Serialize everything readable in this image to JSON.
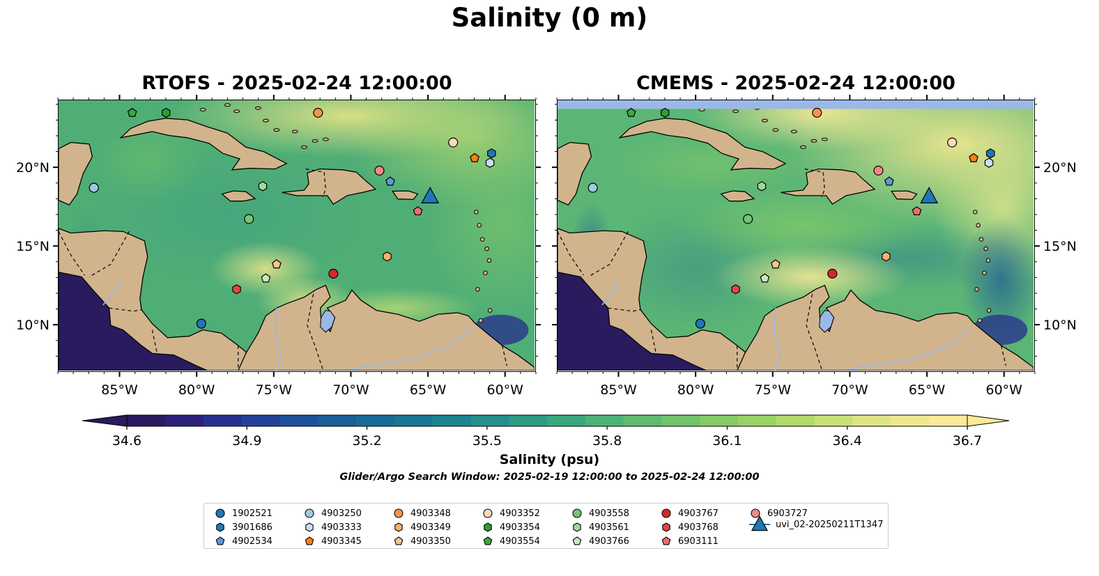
{
  "title": "Salinity (0 m)",
  "panels": [
    {
      "name": "rtofs",
      "title": "RTOFS - 2025-02-24 12:00:00",
      "has_missing_band": false
    },
    {
      "name": "cmems",
      "title": "CMEMS - 2025-02-24 12:00:00",
      "has_missing_band": true
    }
  ],
  "map_extent": {
    "lon_min": -89.0,
    "lon_max": -58.0,
    "lat_min": 7.0,
    "lat_max": 24.3
  },
  "axes": {
    "lon_ticks": [
      {
        "value": -85,
        "label": "85°W"
      },
      {
        "value": -80,
        "label": "80°W"
      },
      {
        "value": -75,
        "label": "75°W"
      },
      {
        "value": -70,
        "label": "70°W"
      },
      {
        "value": -65,
        "label": "65°W"
      },
      {
        "value": -60,
        "label": "60°W"
      }
    ],
    "lat_ticks": [
      {
        "value": 20,
        "label": "20°N"
      },
      {
        "value": 15,
        "label": "15°N"
      },
      {
        "value": 10,
        "label": "10°N"
      }
    ]
  },
  "colorbar": {
    "label": "Salinity (psu)",
    "min": 34.6,
    "max": 36.7,
    "tick_labels": [
      "34.6",
      "34.9",
      "35.2",
      "35.5",
      "35.8",
      "36.1",
      "36.4",
      "36.7"
    ],
    "colors": [
      "#2a1a5e",
      "#2b207a",
      "#28318f",
      "#234198",
      "#1f509a",
      "#1b5e99",
      "#196b97",
      "#1a7794",
      "#1d8391",
      "#23908c",
      "#2c9c86",
      "#3aa77f",
      "#4cb278",
      "#60bb70",
      "#73c46a",
      "#86cb66",
      "#9bd266",
      "#b2d96c",
      "#c9e078",
      "#dfe586",
      "#efe690",
      "#fbeb98"
    ],
    "extend": "both"
  },
  "search_window": "Glider/Argo Search Window: 2025-02-19 12:00:00 to 2025-02-24 12:00:00",
  "colors": {
    "land": "#d1b48c",
    "deep_fresh": "#2a1a5e",
    "missing_band": "#9bb8e6",
    "lake": "#9bb8e6"
  },
  "legend": {
    "items": [
      {
        "id": "1902521",
        "label": "1902521",
        "marker": "circle",
        "color": "#1f77b4"
      },
      {
        "id": "3901686",
        "label": "3901686",
        "marker": "hexagon",
        "color": "#1f77b4"
      },
      {
        "id": "4902534",
        "label": "4902534",
        "marker": "pentagon",
        "color": "#5b9bd5"
      },
      {
        "id": "4903250",
        "label": "4903250",
        "marker": "circle",
        "color": "#9ecae1"
      },
      {
        "id": "4903333",
        "label": "4903333",
        "marker": "hexagon",
        "color": "#c6e0f5"
      },
      {
        "id": "4903345",
        "label": "4903345",
        "marker": "pentagon",
        "color": "#ff7f0e"
      },
      {
        "id": "4903348",
        "label": "4903348",
        "marker": "circle",
        "color": "#f5944a"
      },
      {
        "id": "4903349",
        "label": "4903349",
        "marker": "hexagon",
        "color": "#fdae6b"
      },
      {
        "id": "4903350",
        "label": "4903350",
        "marker": "pentagon",
        "color": "#fdc28e"
      },
      {
        "id": "4903352",
        "label": "4903352",
        "marker": "circle",
        "color": "#fdd9bf"
      },
      {
        "id": "4903354",
        "label": "4903354",
        "marker": "hexagon",
        "color": "#2ca02c"
      },
      {
        "id": "4903554",
        "label": "4903554",
        "marker": "pentagon",
        "color": "#3aaa3a"
      },
      {
        "id": "4903558",
        "label": "4903558",
        "marker": "circle",
        "color": "#74c476"
      },
      {
        "id": "4903561",
        "label": "4903561",
        "marker": "hexagon",
        "color": "#a1d99b"
      },
      {
        "id": "4903766",
        "label": "4903766",
        "marker": "pentagon",
        "color": "#c7e9c0"
      },
      {
        "id": "4903767",
        "label": "4903767",
        "marker": "circle",
        "color": "#d62728"
      },
      {
        "id": "4903768",
        "label": "4903768",
        "marker": "hexagon",
        "color": "#e0454a"
      },
      {
        "id": "6903111",
        "label": "6903111",
        "marker": "pentagon",
        "color": "#ef6b6b"
      },
      {
        "id": "6903727",
        "label": "6903727",
        "marker": "circle",
        "color": "#f08a87"
      },
      {
        "id": "uvi_02",
        "label": "uvi_02-20250211T1347",
        "marker": "triangle-line",
        "color": "#1f77b4"
      }
    ]
  },
  "platforms": [
    {
      "id": "4903554",
      "lon": -84.2,
      "lat": 23.5
    },
    {
      "id": "4903354",
      "lon": -82.0,
      "lat": 23.5
    },
    {
      "id": "4903348",
      "lon": -72.1,
      "lat": 23.5
    },
    {
      "id": "4903352",
      "lon": -63.3,
      "lat": 21.6
    },
    {
      "id": "3901686",
      "lon": -60.8,
      "lat": 20.9
    },
    {
      "id": "4903345",
      "lon": -61.9,
      "lat": 20.6
    },
    {
      "id": "4903333",
      "lon": -60.9,
      "lat": 20.3
    },
    {
      "id": "4903250",
      "lon": -86.7,
      "lat": 18.7
    },
    {
      "id": "6903727",
      "lon": -68.1,
      "lat": 19.8
    },
    {
      "id": "4902534",
      "lon": -67.4,
      "lat": 19.1
    },
    {
      "id": "4903561",
      "lon": -75.7,
      "lat": 18.8
    },
    {
      "id": "6903111",
      "lon": -65.6,
      "lat": 17.2
    },
    {
      "id": "4903558",
      "lon": -76.6,
      "lat": 16.7
    },
    {
      "id": "4903349",
      "lon": -67.6,
      "lat": 14.3
    },
    {
      "id": "4903350",
      "lon": -74.8,
      "lat": 13.8
    },
    {
      "id": "4903766",
      "lon": -75.5,
      "lat": 12.9
    },
    {
      "id": "4903767",
      "lon": -71.1,
      "lat": 13.2
    },
    {
      "id": "4903768",
      "lon": -77.4,
      "lat": 12.2
    },
    {
      "id": "1902521",
      "lon": -79.7,
      "lat": 10.0
    },
    {
      "id": "uvi_02",
      "lon": -64.8,
      "lat": 18.1
    }
  ]
}
